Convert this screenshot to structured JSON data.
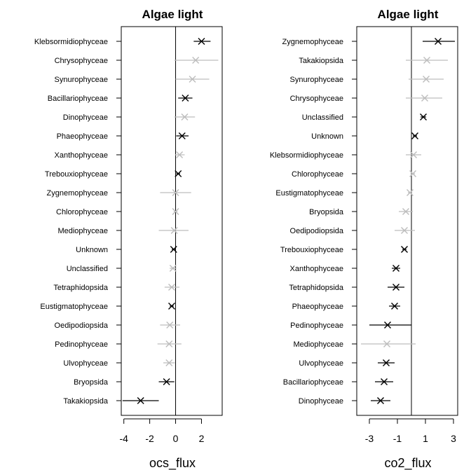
{
  "chart_data": [
    {
      "type": "forest",
      "title": "Algae light",
      "xlabel": "ocs_flux",
      "ylabel": "",
      "xlim": [
        -4.2,
        3.6
      ],
      "xticks": [
        -4,
        -2,
        0,
        2
      ],
      "reference_line": 0,
      "colors": {
        "significant": "#000000",
        "not_significant": "#bdbdbd"
      },
      "rows": [
        {
          "label": "Klebsormidiophyceae",
          "estimate": 2.0,
          "lower": 1.4,
          "upper": 2.7,
          "significant": true
        },
        {
          "label": "Chrysophyceae",
          "estimate": 1.55,
          "lower": -0.1,
          "upper": 3.3,
          "significant": false
        },
        {
          "label": "Synurophyceae",
          "estimate": 1.3,
          "lower": 0.0,
          "upper": 2.6,
          "significant": false
        },
        {
          "label": "Bacillariophyceae",
          "estimate": 0.75,
          "lower": 0.2,
          "upper": 1.3,
          "significant": true
        },
        {
          "label": "Dinophyceae",
          "estimate": 0.7,
          "lower": -0.1,
          "upper": 1.5,
          "significant": false
        },
        {
          "label": "Phaeophyceae",
          "estimate": 0.5,
          "lower": 0.05,
          "upper": 1.0,
          "significant": true
        },
        {
          "label": "Xanthophyceae",
          "estimate": 0.3,
          "lower": -0.05,
          "upper": 0.7,
          "significant": false
        },
        {
          "label": "Trebouxiophyceae",
          "estimate": 0.2,
          "lower": 0.05,
          "upper": 0.35,
          "significant": true
        },
        {
          "label": "Zygnemophyceae",
          "estimate": 0.0,
          "lower": -1.2,
          "upper": 1.2,
          "significant": false
        },
        {
          "label": "Chlorophyceae",
          "estimate": 0.0,
          "lower": -0.15,
          "upper": 0.15,
          "significant": false
        },
        {
          "label": "Mediophyceae",
          "estimate": -0.1,
          "lower": -1.3,
          "upper": 1.0,
          "significant": false
        },
        {
          "label": "Unknown",
          "estimate": -0.15,
          "lower": -0.3,
          "upper": 0.0,
          "significant": true
        },
        {
          "label": "Unclassified",
          "estimate": -0.2,
          "lower": -0.45,
          "upper": 0.05,
          "significant": false
        },
        {
          "label": "Tetraphidopsida",
          "estimate": -0.3,
          "lower": -0.85,
          "upper": 0.3,
          "significant": false
        },
        {
          "label": "Eustigmatophyceae",
          "estimate": -0.3,
          "lower": -0.45,
          "upper": -0.15,
          "significant": true
        },
        {
          "label": "Oedipodiopsida",
          "estimate": -0.45,
          "lower": -1.2,
          "upper": 0.35,
          "significant": false
        },
        {
          "label": "Pedinophyceae",
          "estimate": -0.5,
          "lower": -1.4,
          "upper": 0.45,
          "significant": false
        },
        {
          "label": "Ulvophyceae",
          "estimate": -0.5,
          "lower": -0.95,
          "upper": -0.05,
          "significant": false
        },
        {
          "label": "Bryopsida",
          "estimate": -0.7,
          "lower": -1.3,
          "upper": -0.1,
          "significant": true
        },
        {
          "label": "Takakiopsida",
          "estimate": -2.7,
          "lower": -4.1,
          "upper": -1.3,
          "significant": true
        }
      ]
    },
    {
      "type": "forest",
      "title": "Algae light",
      "xlabel": "co2_flux",
      "ylabel": "",
      "xlim": [
        -3.9,
        3.3
      ],
      "xticks": [
        -3,
        -1,
        1,
        3
      ],
      "reference_line": 0,
      "colors": {
        "significant": "#000000",
        "not_significant": "#bdbdbd"
      },
      "rows": [
        {
          "label": "Zygnemophyceae",
          "estimate": 1.9,
          "lower": 0.8,
          "upper": 3.1,
          "significant": true
        },
        {
          "label": "Takakiopsida",
          "estimate": 1.1,
          "lower": -0.4,
          "upper": 2.6,
          "significant": false
        },
        {
          "label": "Synurophyceae",
          "estimate": 1.05,
          "lower": -0.2,
          "upper": 2.3,
          "significant": false
        },
        {
          "label": "Chrysophyceae",
          "estimate": 0.95,
          "lower": -0.4,
          "upper": 2.2,
          "significant": false
        },
        {
          "label": "Unclassified",
          "estimate": 0.85,
          "lower": 0.65,
          "upper": 1.05,
          "significant": true
        },
        {
          "label": "Unknown",
          "estimate": 0.25,
          "lower": 0.1,
          "upper": 0.4,
          "significant": true
        },
        {
          "label": "Klebsormidiophyceae",
          "estimate": 0.15,
          "lower": -0.4,
          "upper": 0.7,
          "significant": false
        },
        {
          "label": "Chlorophyceae",
          "estimate": 0.1,
          "lower": -0.05,
          "upper": 0.25,
          "significant": false
        },
        {
          "label": "Eustigmatophyceae",
          "estimate": -0.1,
          "lower": -0.25,
          "upper": 0.05,
          "significant": false
        },
        {
          "label": "Bryopsida",
          "estimate": -0.4,
          "lower": -0.9,
          "upper": 0.1,
          "significant": false
        },
        {
          "label": "Oedipodiopsida",
          "estimate": -0.5,
          "lower": -1.2,
          "upper": 0.25,
          "significant": false
        },
        {
          "label": "Trebouxiophyceae",
          "estimate": -0.5,
          "lower": -0.65,
          "upper": -0.35,
          "significant": true
        },
        {
          "label": "Xanthophyceae",
          "estimate": -1.1,
          "lower": -1.4,
          "upper": -0.8,
          "significant": true
        },
        {
          "label": "Tetraphidopsida",
          "estimate": -1.1,
          "lower": -1.7,
          "upper": -0.5,
          "significant": true
        },
        {
          "label": "Phaeophyceae",
          "estimate": -1.2,
          "lower": -1.6,
          "upper": -0.8,
          "significant": true
        },
        {
          "label": "Pedinophyceae",
          "estimate": -1.7,
          "lower": -3.0,
          "upper": 0.0,
          "significant": true
        },
        {
          "label": "Mediophyceae",
          "estimate": -1.75,
          "lower": -3.6,
          "upper": 0.3,
          "significant": false
        },
        {
          "label": "Ulvophyceae",
          "estimate": -1.8,
          "lower": -2.4,
          "upper": -1.2,
          "significant": true
        },
        {
          "label": "Bacillariophyceae",
          "estimate": -1.95,
          "lower": -2.6,
          "upper": -1.3,
          "significant": true
        },
        {
          "label": "Dinophyceae",
          "estimate": -2.2,
          "lower": -2.9,
          "upper": -1.5,
          "significant": true
        }
      ]
    }
  ]
}
